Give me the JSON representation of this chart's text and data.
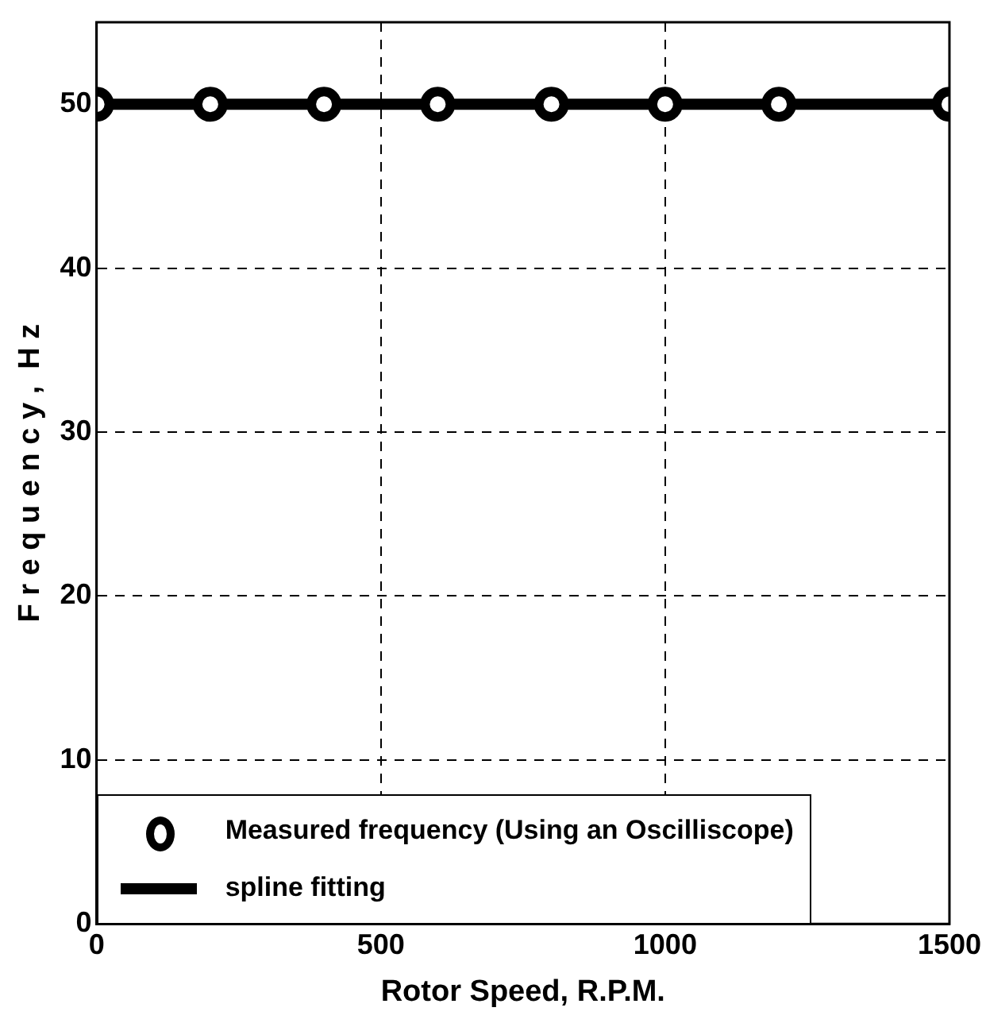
{
  "chart_data": {
    "type": "scatter",
    "xlabel": "Rotor Speed, R.P.M.",
    "ylabel": "F r e q u e n c y ,  H z",
    "xlim": [
      0,
      1500
    ],
    "xticks": [
      0,
      500,
      1000,
      1500
    ],
    "ylim": [
      0,
      55
    ],
    "yticks": [
      0,
      10,
      20,
      30,
      40,
      50
    ],
    "grid": true,
    "line_style": "dashed",
    "legend": "bottom left",
    "series": [
      {
        "name": "Measured frequency (Using an Oscilliscope)",
        "type": "scatter",
        "marker": "circle",
        "color": "#000000",
        "x": [
          0,
          200,
          400,
          600,
          800,
          1000,
          1200,
          1500
        ],
        "values": [
          50,
          50,
          50,
          50,
          50,
          50,
          50,
          50
        ]
      },
      {
        "name": "spline fitting",
        "type": "line",
        "marker": "none",
        "line_style": "solid",
        "color": "#000000",
        "x": [
          0,
          200,
          400,
          600,
          800,
          1000,
          1200,
          1500
        ],
        "values": [
          50,
          50,
          50,
          50,
          50,
          50,
          50,
          50
        ]
      }
    ]
  }
}
